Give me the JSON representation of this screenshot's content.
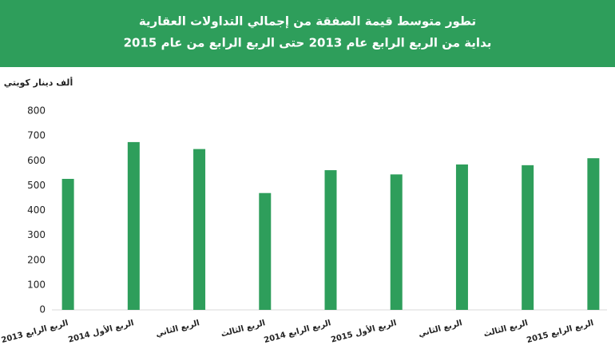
{
  "chart_data": {
    "type": "bar",
    "title": "تطور متوسط قيمة الصفقة من  إجمالي التداولات العقارية",
    "subtitle": "بداية من الربع الرابع عام  2013 حتى الربع الرابع من عام 2015",
    "y_label": "ألف دينار كويتي",
    "categories": [
      "الربع الرابع 2013",
      "الربع الأول 2014",
      "الربع الثاني",
      "الربع الثالث",
      "الربع الرابع 2014",
      "الربع الأول 2015",
      "الربع الثاني",
      "الربع الثالث",
      "الربع الرابع 2015"
    ],
    "values": [
      527,
      675,
      647,
      470,
      562,
      545,
      585,
      582,
      610
    ],
    "color": "#2e9e5b",
    "ylim": [
      0,
      800
    ],
    "yticks": [
      0,
      100,
      200,
      300,
      400,
      500,
      600,
      700,
      800
    ],
    "grid": false
  }
}
